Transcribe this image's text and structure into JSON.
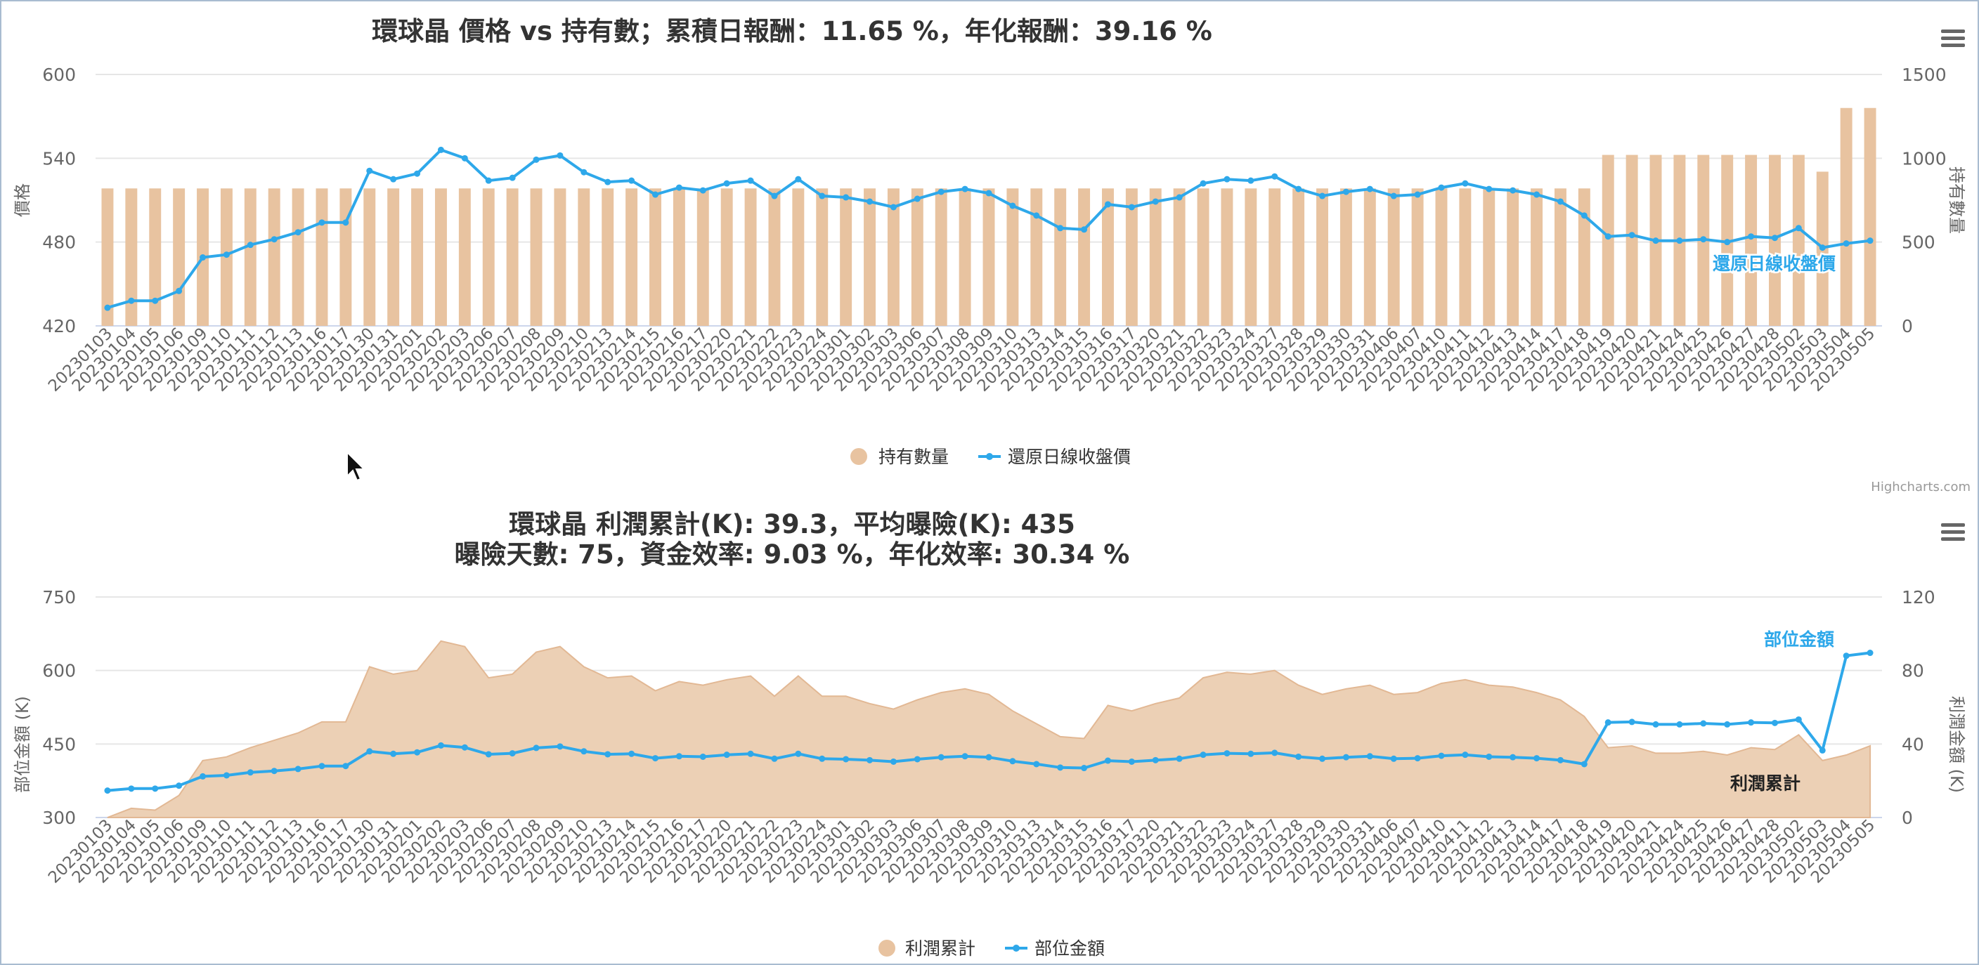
{
  "credits": "Highcharts.com",
  "colors": {
    "bars": "#e8c3a0",
    "line": "#2ea8ea",
    "area": "#ecd0b5",
    "grid": "#e6e6e6",
    "text": "#333333",
    "axis": "#666666"
  },
  "icons": {
    "menu": "hamburger-menu-icon",
    "cursor": "mouse-cursor-icon"
  },
  "chart_data": [
    {
      "type": "bar",
      "title": "環球晶 價格 vs 持有數；累積日報酬：11.65 %，年化報酬：39.16 %",
      "ylabel_left": "價格",
      "ylabel_right": "持有數量",
      "ylim_left": [
        420,
        600
      ],
      "ylim_right": [
        0,
        1500
      ],
      "yticks_left": [
        "600",
        "540",
        "480",
        "420"
      ],
      "yticks_right": [
        "1500",
        "1000",
        "500",
        "0"
      ],
      "legend_placement": "bottom-center",
      "grid": true,
      "categories": [
        "20230103",
        "20230104",
        "20230105",
        "20230106",
        "20230109",
        "20230110",
        "20230111",
        "20230112",
        "20230113",
        "20230116",
        "20230117",
        "20230130",
        "20230131",
        "20230201",
        "20230202",
        "20230203",
        "20230206",
        "20230207",
        "20230208",
        "20230209",
        "20230210",
        "20230213",
        "20230214",
        "20230215",
        "20230216",
        "20230217",
        "20230220",
        "20230221",
        "20230222",
        "20230223",
        "20230224",
        "20230301",
        "20230302",
        "20230303",
        "20230306",
        "20230307",
        "20230308",
        "20230309",
        "20230310",
        "20230313",
        "20230314",
        "20230315",
        "20230316",
        "20230317",
        "20230320",
        "20230321",
        "20230322",
        "20230323",
        "20230324",
        "20230327",
        "20230328",
        "20230329",
        "20230330",
        "20230331",
        "20230406",
        "20230407",
        "20230410",
        "20230411",
        "20230412",
        "20230413",
        "20230414",
        "20230417",
        "20230418",
        "20230419",
        "20230420",
        "20230421",
        "20230424",
        "20230425",
        "20230426",
        "20230427",
        "20230428",
        "20230502",
        "20230503",
        "20230504",
        "20230505"
      ],
      "series": [
        {
          "name": "持有數量",
          "kind": "bar",
          "axis": "right",
          "values": [
            820,
            820,
            820,
            820,
            820,
            820,
            820,
            820,
            820,
            820,
            820,
            820,
            820,
            820,
            820,
            820,
            820,
            820,
            820,
            820,
            820,
            820,
            820,
            820,
            820,
            820,
            820,
            820,
            820,
            820,
            820,
            820,
            820,
            820,
            820,
            820,
            820,
            820,
            820,
            820,
            820,
            820,
            820,
            820,
            820,
            820,
            820,
            820,
            820,
            820,
            820,
            820,
            820,
            820,
            820,
            820,
            820,
            820,
            820,
            820,
            820,
            820,
            820,
            1020,
            1020,
            1020,
            1020,
            1020,
            1020,
            1020,
            1020,
            1020,
            920,
            1300,
            1300
          ]
        },
        {
          "name": "還原日線收盤價",
          "kind": "line",
          "axis": "left",
          "values": [
            433,
            438,
            438,
            445,
            469,
            471,
            478,
            482,
            487,
            494,
            494,
            531,
            525,
            529,
            546,
            540,
            524,
            526,
            539,
            542,
            530,
            523,
            524,
            514,
            519,
            517,
            522,
            524,
            513,
            525,
            513,
            512,
            509,
            505,
            511,
            516,
            518,
            515,
            506,
            499,
            490,
            489,
            507,
            505,
            509,
            512,
            522,
            525,
            524,
            527,
            518,
            513,
            516,
            518,
            513,
            514,
            519,
            522,
            518,
            517,
            514,
            509,
            499,
            484,
            485,
            481,
            481,
            482,
            480,
            484,
            483,
            490,
            476,
            479,
            481
          ]
        }
      ],
      "annotations": [
        "還原日線收盤價"
      ]
    },
    {
      "type": "area",
      "title_line1": "環球晶 利潤累計(K): 39.3，平均曝險(K): 435",
      "title_line2": "曝險天數: 75，資金效率: 9.03 %，年化效率: 30.34 %",
      "ylabel_left": "部位金額 (K)",
      "ylabel_right": "利潤金額 (K)",
      "ylim_left": [
        300,
        750
      ],
      "ylim_right": [
        0,
        120
      ],
      "yticks_left": [
        "750",
        "600",
        "450",
        "300"
      ],
      "yticks_right": [
        "120",
        "80",
        "40",
        "0"
      ],
      "legend_placement": "bottom-center",
      "grid": true,
      "series": [
        {
          "name": "利潤累計",
          "kind": "area",
          "axis": "right",
          "values": [
            0,
            5,
            4,
            12,
            31,
            33,
            38,
            42,
            46,
            52,
            52,
            82,
            78,
            80,
            96,
            93,
            76,
            78,
            90,
            93,
            82,
            76,
            77,
            69,
            74,
            72,
            75,
            77,
            66,
            77,
            66,
            66,
            62,
            59,
            64,
            68,
            70,
            67,
            58,
            51,
            44,
            43,
            61,
            58,
            62,
            65,
            76,
            79,
            78,
            80,
            72,
            67,
            70,
            72,
            67,
            68,
            73,
            75,
            72,
            71,
            68,
            64,
            55,
            38,
            39,
            35,
            35,
            36,
            34,
            38,
            37,
            45,
            31,
            34,
            39
          ]
        },
        {
          "name": "部位金額",
          "kind": "line",
          "axis": "left",
          "values": [
            355,
            359,
            359,
            365,
            384,
            386,
            392,
            395,
            399,
            405,
            405,
            435,
            430,
            433,
            447,
            443,
            429,
            431,
            442,
            445,
            435,
            429,
            430,
            421,
            425,
            424,
            428,
            430,
            420,
            430,
            420,
            419,
            417,
            414,
            419,
            423,
            425,
            423,
            415,
            409,
            402,
            401,
            416,
            414,
            417,
            420,
            428,
            431,
            430,
            432,
            424,
            420,
            423,
            425,
            420,
            421,
            426,
            428,
            424,
            423,
            421,
            417,
            409,
            494,
            495,
            490,
            490,
            492,
            490,
            494,
            493,
            500,
            437,
            630,
            636
          ]
        }
      ],
      "annotations": [
        "部位金額",
        "利潤累計"
      ]
    }
  ]
}
